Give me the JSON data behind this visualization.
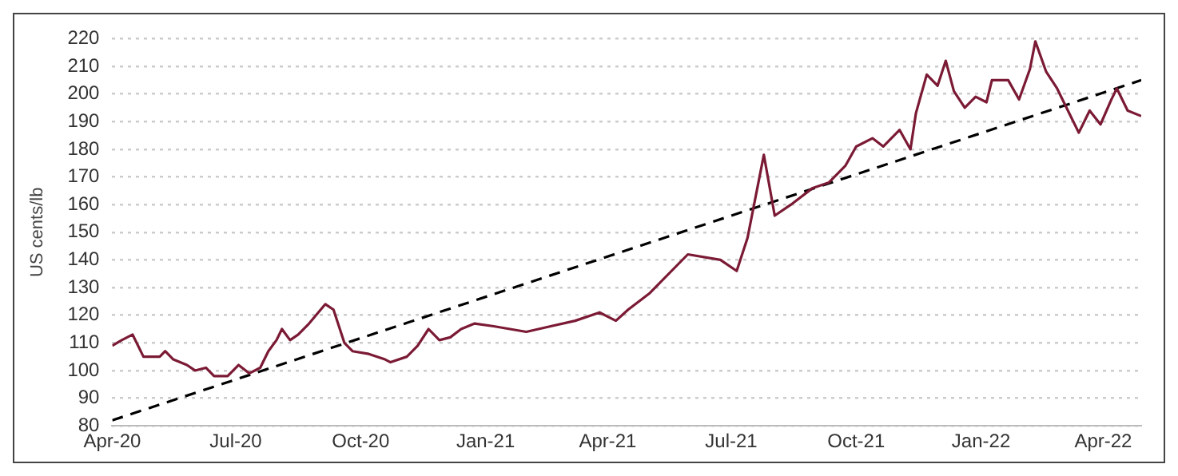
{
  "chart_data": {
    "type": "line",
    "ylabel": "US cents/lb",
    "xlim": [
      "2020-04-01",
      "2022-04-29"
    ],
    "xticks": [
      {
        "value": "2020-04-01",
        "label": "Apr-20"
      },
      {
        "value": "2020-07-01",
        "label": "Jul-20"
      },
      {
        "value": "2020-10-01",
        "label": "Oct-20"
      },
      {
        "value": "2021-01-01",
        "label": "Jan-21"
      },
      {
        "value": "2021-04-01",
        "label": "Apr-21"
      },
      {
        "value": "2021-07-01",
        "label": "Jul-21"
      },
      {
        "value": "2021-10-01",
        "label": "Oct-21"
      },
      {
        "value": "2022-01-01",
        "label": "Jan-22"
      },
      {
        "value": "2022-04-01",
        "label": "Apr-22"
      }
    ],
    "ylim": [
      80,
      220
    ],
    "yticks": [
      80,
      90,
      100,
      110,
      120,
      130,
      140,
      150,
      160,
      170,
      180,
      190,
      200,
      210,
      220
    ],
    "grid": "y",
    "marker": "none",
    "series": [
      {
        "color": "#7b1a35",
        "line_style": "solid",
        "x": [
          "2020-04-01",
          "2020-04-08",
          "2020-04-16",
          "2020-04-24",
          "2020-05-06",
          "2020-05-10",
          "2020-05-16",
          "2020-05-26",
          "2020-06-01",
          "2020-06-09",
          "2020-06-15",
          "2020-06-25",
          "2020-07-03",
          "2020-07-11",
          "2020-07-19",
          "2020-07-25",
          "2020-07-31",
          "2020-08-04",
          "2020-08-10",
          "2020-08-16",
          "2020-08-24",
          "2020-09-05",
          "2020-09-11",
          "2020-09-19",
          "2020-09-25",
          "2020-10-07",
          "2020-10-19",
          "2020-10-23",
          "2020-11-04",
          "2020-11-12",
          "2020-11-20",
          "2020-11-28",
          "2020-12-06",
          "2020-12-14",
          "2020-12-24",
          "2021-01-07",
          "2021-01-31",
          "2021-02-18",
          "2021-03-08",
          "2021-03-26",
          "2021-04-07",
          "2021-04-16",
          "2021-05-02",
          "2021-05-30",
          "2021-06-23",
          "2021-07-05",
          "2021-07-13",
          "2021-07-25",
          "2021-08-02",
          "2021-08-14",
          "2021-08-30",
          "2021-09-11",
          "2021-09-23",
          "2021-10-01",
          "2021-10-13",
          "2021-10-21",
          "2021-11-02",
          "2021-11-10",
          "2021-11-14",
          "2021-11-22",
          "2021-11-30",
          "2021-12-06",
          "2021-12-12",
          "2021-12-20",
          "2021-12-28",
          "2022-01-05",
          "2022-01-09",
          "2022-01-21",
          "2022-01-29",
          "2022-02-06",
          "2022-02-10",
          "2022-02-18",
          "2022-02-26",
          "2022-03-06",
          "2022-03-14",
          "2022-03-22",
          "2022-03-30",
          "2022-04-07",
          "2022-04-11",
          "2022-04-19",
          "2022-04-29"
        ],
        "values": [
          109,
          111,
          113,
          105,
          105,
          107,
          104,
          102,
          100,
          101,
          98,
          98,
          102,
          99,
          101,
          107,
          111,
          115,
          111,
          113,
          117,
          124,
          122,
          110,
          107,
          106,
          104,
          103,
          105,
          109,
          115,
          111,
          112,
          115,
          117,
          116,
          114,
          116,
          118,
          121,
          118,
          122,
          128,
          142,
          140,
          136,
          148,
          178,
          156,
          160,
          166,
          168,
          174,
          181,
          184,
          181,
          187,
          180,
          193,
          207,
          203,
          212,
          201,
          195,
          199,
          197,
          205,
          205,
          198,
          209,
          219,
          208,
          202,
          194,
          186,
          194,
          189,
          198,
          202,
          194,
          192
        ]
      },
      {
        "color": "#000000",
        "line_style": "dashed",
        "x": [
          "2020-04-01",
          "2022-04-29"
        ],
        "values": [
          82,
          205
        ]
      }
    ]
  }
}
